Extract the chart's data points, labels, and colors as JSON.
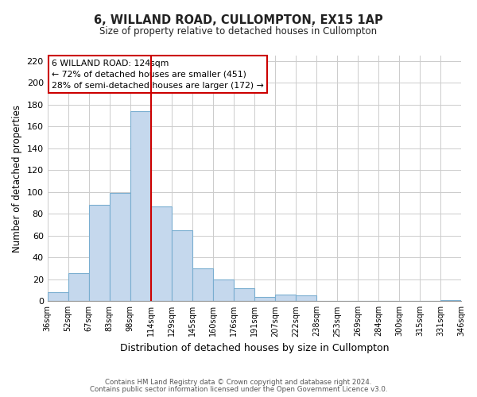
{
  "title": "6, WILLAND ROAD, CULLOMPTON, EX15 1AP",
  "subtitle": "Size of property relative to detached houses in Cullompton",
  "xlabel": "Distribution of detached houses by size in Cullompton",
  "ylabel": "Number of detached properties",
  "bins": [
    "36sqm",
    "52sqm",
    "67sqm",
    "83sqm",
    "98sqm",
    "114sqm",
    "129sqm",
    "145sqm",
    "160sqm",
    "176sqm",
    "191sqm",
    "207sqm",
    "222sqm",
    "238sqm",
    "253sqm",
    "269sqm",
    "284sqm",
    "300sqm",
    "315sqm",
    "331sqm",
    "346sqm"
  ],
  "values": [
    8,
    26,
    88,
    99,
    174,
    87,
    65,
    30,
    20,
    12,
    4,
    6,
    5,
    0,
    0,
    0,
    0,
    0,
    0,
    1
  ],
  "bar_color": "#c5d8ed",
  "bar_edge_color": "#7aaed0",
  "vline_position": 5.0,
  "annotation_title": "6 WILLAND ROAD: 124sqm",
  "annotation_line1": "← 72% of detached houses are smaller (451)",
  "annotation_line2": "28% of semi-detached houses are larger (172) →",
  "vline_color": "#cc0000",
  "annotation_box_color": "#cc0000",
  "ylim": [
    0,
    225
  ],
  "yticks": [
    0,
    20,
    40,
    60,
    80,
    100,
    120,
    140,
    160,
    180,
    200,
    220
  ],
  "footnote1": "Contains HM Land Registry data © Crown copyright and database right 2024.",
  "footnote2": "Contains public sector information licensed under the Open Government Licence v3.0.",
  "background_color": "#ffffff",
  "grid_color": "#cccccc"
}
